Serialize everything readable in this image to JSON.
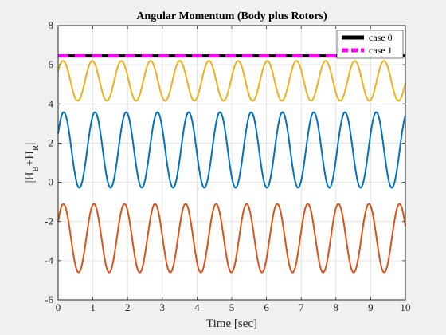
{
  "chart_data": {
    "type": "line",
    "title": "Angular Momentum (Body plus Rotors)",
    "xlabel": "Time [sec]",
    "ylabel_main": "|H",
    "ylabel_sub1": "B",
    "ylabel_mid": "+H",
    "ylabel_sub2": "R",
    "ylabel_end": "|",
    "xlim": [
      0,
      10
    ],
    "ylim": [
      -6,
      8
    ],
    "xticks": [
      0,
      1,
      2,
      3,
      4,
      5,
      6,
      7,
      8,
      9,
      10
    ],
    "yticks": [
      -6,
      -4,
      -2,
      0,
      2,
      4,
      6,
      8
    ],
    "xtick_labels": [
      "0",
      "1",
      "2",
      "3",
      "4",
      "5",
      "6",
      "7",
      "8",
      "9",
      "10"
    ],
    "ytick_labels": [
      "-6",
      "-4",
      "-2",
      "0",
      "2",
      "4",
      "6",
      "8"
    ],
    "grid": true,
    "legend_position": "top-right",
    "legend": [
      {
        "label": "case 0",
        "color": "#000000",
        "style": "solid"
      },
      {
        "label": "case 1",
        "color": "#ff00ff",
        "style": "dashed"
      }
    ],
    "series": [
      {
        "name": "case 0",
        "color": "#000000",
        "style": "solid",
        "kind": "constant",
        "value": 6.45
      },
      {
        "name": "case 1",
        "color": "#ff00ff",
        "style": "dashed",
        "kind": "constant",
        "value": 6.45
      },
      {
        "color": "#edb120",
        "kind": "sine",
        "center": 5.18,
        "amplitude": 1.02,
        "period": 0.84,
        "phase_at_zero": 0.5
      },
      {
        "color": "#0072bd",
        "kind": "sine",
        "center": 1.65,
        "amplitude": 1.93,
        "period": 0.9,
        "phase_at_zero": 0.45
      },
      {
        "color": "#d95319",
        "kind": "sine",
        "center": -2.85,
        "amplitude": 1.75,
        "period": 0.88,
        "phase_at_zero": 0.5
      }
    ]
  }
}
